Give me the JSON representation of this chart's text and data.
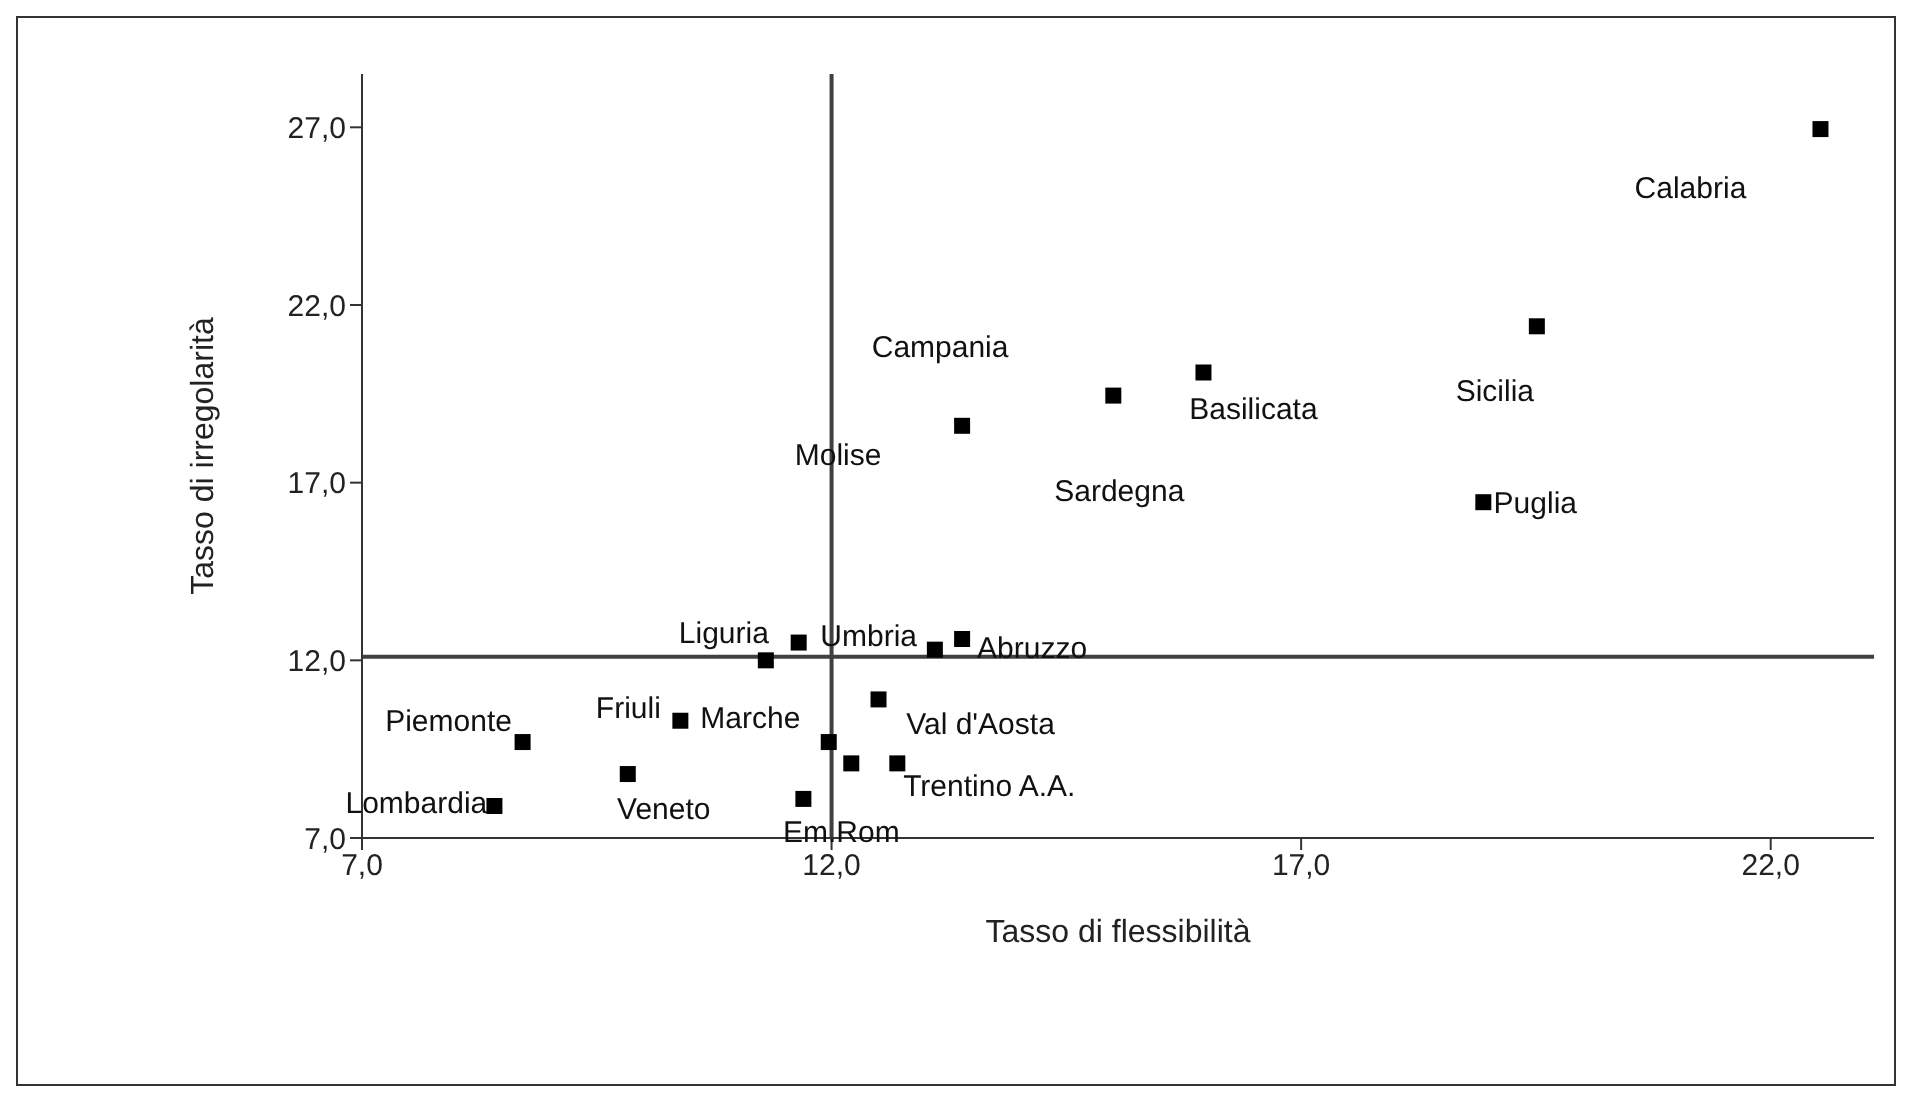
{
  "chart_data": {
    "type": "scatter",
    "xlabel": "Tasso di flessibilità",
    "ylabel": "Tasso di irregolarità",
    "xlim": [
      7,
      23.1
    ],
    "ylim": [
      7,
      28.5
    ],
    "xticks": [
      {
        "value": 7,
        "label": "7,0"
      },
      {
        "value": 12,
        "label": "12,0"
      },
      {
        "value": 17,
        "label": "17,0"
      },
      {
        "value": 22,
        "label": "22,0"
      }
    ],
    "yticks": [
      {
        "value": 7,
        "label": "7,0"
      },
      {
        "value": 12,
        "label": "12,0"
      },
      {
        "value": 17,
        "label": "17,0"
      },
      {
        "value": 22,
        "label": "22,0"
      },
      {
        "value": 27,
        "label": "27,0"
      }
    ],
    "marker": "square",
    "grid": false,
    "legend": false,
    "series": [
      {
        "color": "#000000",
        "x": [
          8.71,
          8.41,
          9.83,
          10.39,
          11.3,
          11.65,
          11.7,
          11.97,
          12.21,
          12.5,
          12.7,
          13.1,
          13.39,
          13.39,
          15.0,
          15.96,
          22.53,
          19.51,
          18.94
        ],
        "values": [
          9.7,
          7.9,
          8.8,
          10.3,
          12.0,
          12.5,
          8.1,
          9.7,
          9.1,
          10.9,
          9.1,
          12.3,
          12.6,
          18.6,
          19.45,
          20.1,
          26.95,
          21.4,
          16.45
        ]
      }
    ],
    "ref_lines": [
      {
        "axis": "x",
        "value": 12.0,
        "color": "#404040"
      },
      {
        "axis": "y",
        "value": 12.1,
        "color": "#404040"
      }
    ],
    "annotations": [
      {
        "text": "Calabria",
        "x": 22.53,
        "y": 26.95
      },
      {
        "text": "Sicilia",
        "x": 19.51,
        "y": 21.4
      },
      {
        "text": "Puglia",
        "x": 18.94,
        "y": 16.45
      },
      {
        "text": "Basilicata",
        "x": 15.96,
        "y": 20.1
      },
      {
        "text": "Sardegna",
        "x": 15.0,
        "y": 19.45
      },
      {
        "text": "Campania",
        "x": 13.39,
        "y": 18.6
      },
      {
        "text": "Molise",
        "x": 13.39,
        "y": 18.6
      },
      {
        "text": "Liguria",
        "x": 11.3,
        "y": 12.0
      },
      {
        "text": "Umbria",
        "x": 11.65,
        "y": 12.5
      },
      {
        "text": "Abruzzo",
        "x": 13.39,
        "y": 12.6
      },
      {
        "text": "Piemonte",
        "x": 8.71,
        "y": 9.7
      },
      {
        "text": "Friuli",
        "x": 10.39,
        "y": 10.3
      },
      {
        "text": "Marche",
        "x": 10.39,
        "y": 10.3
      },
      {
        "text": "Val d'Aosta",
        "x": 12.5,
        "y": 10.9
      },
      {
        "text": "Lombardia",
        "x": 8.41,
        "y": 7.9
      },
      {
        "text": "Veneto",
        "x": 9.83,
        "y": 8.8
      },
      {
        "text": "Trentino A.A.",
        "x": 12.7,
        "y": 9.1
      },
      {
        "text": "Em.Rom",
        "x": 11.7,
        "y": 8.1
      }
    ]
  }
}
